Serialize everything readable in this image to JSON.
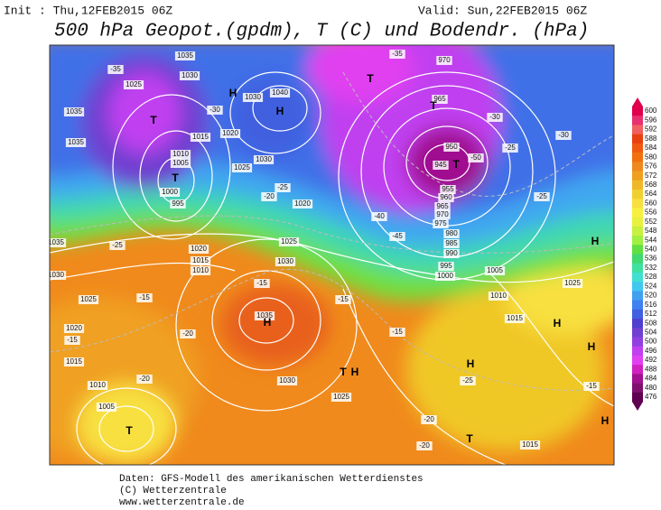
{
  "header": {
    "init": "Init : Thu,12FEB2015 06Z",
    "valid": "Valid: Sun,22FEB2015 06Z",
    "title": "500 hPa Geopot.(gpdm), T (C) und Bodendr. (hPa)"
  },
  "footer": {
    "source": "Daten: GFS-Modell des amerikanischen Wetterdienstes",
    "copyright": "(C) Wetterzentrale",
    "url": "www.wetterzentrale.de"
  },
  "colorbar": {
    "ticks": [
      {
        "value": 600,
        "color": "#e0004c"
      },
      {
        "value": 596,
        "color": "#e83070"
      },
      {
        "value": 592,
        "color": "#f06060"
      },
      {
        "value": 588,
        "color": "#e84010"
      },
      {
        "value": 584,
        "color": "#f05a10"
      },
      {
        "value": 580,
        "color": "#f07010"
      },
      {
        "value": 576,
        "color": "#f08820"
      },
      {
        "value": 572,
        "color": "#f0a020"
      },
      {
        "value": 568,
        "color": "#f0b828"
      },
      {
        "value": 564,
        "color": "#f0d030"
      },
      {
        "value": 560,
        "color": "#f8e040"
      },
      {
        "value": 556,
        "color": "#f8f040"
      },
      {
        "value": 552,
        "color": "#e8f040"
      },
      {
        "value": 548,
        "color": "#c8f040"
      },
      {
        "value": 544,
        "color": "#a0f040"
      },
      {
        "value": 540,
        "color": "#60e040"
      },
      {
        "value": 536,
        "color": "#40d870"
      },
      {
        "value": 532,
        "color": "#40e0a0"
      },
      {
        "value": 528,
        "color": "#40e0d0"
      },
      {
        "value": 524,
        "color": "#40c8f0"
      },
      {
        "value": 520,
        "color": "#40a0f0"
      },
      {
        "value": 516,
        "color": "#4080f0"
      },
      {
        "value": 512,
        "color": "#4060e0"
      },
      {
        "value": 508,
        "color": "#5040d0"
      },
      {
        "value": 504,
        "color": "#7040d0"
      },
      {
        "value": 500,
        "color": "#9040e0"
      },
      {
        "value": 496,
        "color": "#c040f0"
      },
      {
        "value": 492,
        "color": "#e040f0"
      },
      {
        "value": 488,
        "color": "#d020c0"
      },
      {
        "value": 484,
        "color": "#a01090"
      },
      {
        "value": 480,
        "color": "#801070"
      },
      {
        "value": 476,
        "color": "#600050"
      }
    ]
  },
  "map": {
    "labels": [
      "1035",
      "1030",
      "1025",
      "1035",
      "1035",
      "T",
      "1015",
      "1020",
      "1010",
      "1005",
      "T",
      "1000",
      "995",
      "1025",
      "1030",
      "H",
      "1030",
      "1040",
      "H",
      "-35",
      "-30",
      "-25",
      "-20",
      "1020",
      "1035",
      "1030",
      "1025",
      "1020",
      "1015",
      "1010",
      "1005",
      "T",
      "1025",
      "1020",
      "1015",
      "1010",
      "1030",
      "1035",
      "H",
      "-15",
      "1030",
      "1025",
      "T",
      "H",
      "-15",
      "-15",
      "-20",
      "-20",
      "-15",
      "-25",
      "970",
      "T",
      "965",
      "T",
      "-35",
      "950",
      "945",
      "T",
      "-50",
      "955",
      "960",
      "965",
      "970",
      "975",
      "980",
      "985",
      "990",
      "995",
      "1000",
      "1005",
      "1010",
      "1015",
      "1025",
      "H",
      "H",
      "H",
      "H",
      "-30",
      "-30",
      "-25",
      "-25",
      "-15",
      "-25",
      "-20",
      "T",
      "1015",
      "H",
      "-40",
      "-45",
      "-20",
      "-15"
    ]
  }
}
